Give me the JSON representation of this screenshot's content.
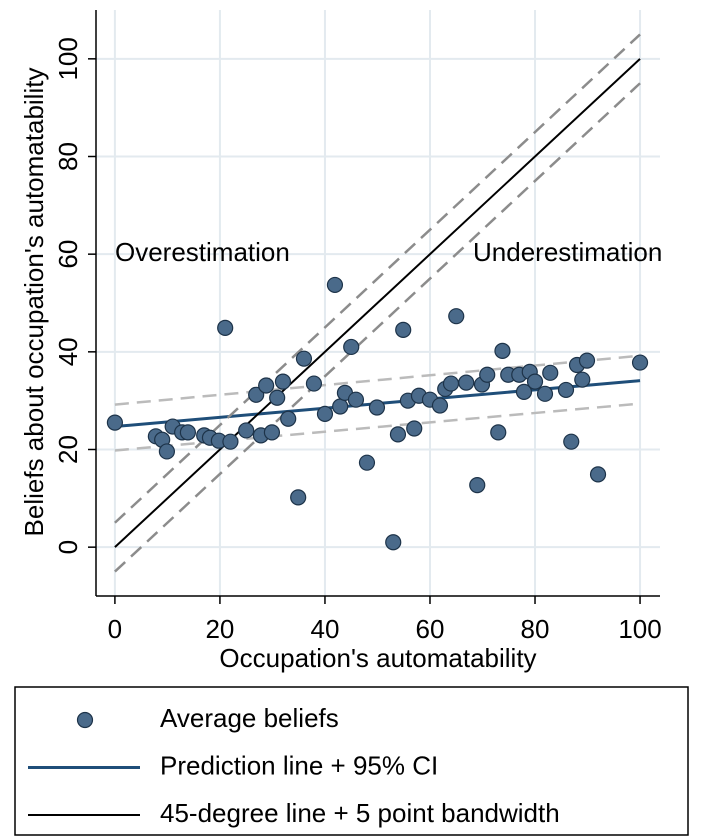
{
  "chart_data": {
    "type": "scatter",
    "x_label": "Occupation's automatability",
    "y_label": "Beliefs about occupation's automatability",
    "annotations": [
      "Overestimation",
      "Underestimation"
    ],
    "xlim": [
      -3.6,
      103.8
    ],
    "ylim": [
      -10,
      110
    ],
    "xticks": [
      0,
      20,
      40,
      60,
      80,
      100
    ],
    "yticks": [
      0,
      20,
      40,
      60,
      80,
      100
    ],
    "grid": true,
    "legend": "bottom",
    "series": [
      {
        "name": "Average beliefs",
        "type": "scatter",
        "color": "#4a6a8a",
        "x": [
          0,
          7.8,
          9,
          9.9,
          11,
          12.8,
          13.9,
          17,
          18.1,
          19.8,
          21,
          22,
          25,
          26.9,
          27.8,
          28.8,
          29.9,
          30.9,
          32,
          33,
          34.9,
          36,
          37.9,
          40,
          41.9,
          42.9,
          43.8,
          45,
          45.9,
          48,
          49.9,
          53,
          53.9,
          54.9,
          55.8,
          57,
          57.9,
          60,
          61.9,
          62.9,
          64,
          65,
          66.9,
          69,
          69.9,
          70.9,
          73,
          73.8,
          74.9,
          77,
          77.9,
          79,
          80,
          81.9,
          82.9,
          85.9,
          86.9,
          88,
          89,
          89.9,
          92,
          100
        ],
        "values": [
          25.5,
          22.7,
          22,
          19.6,
          24.7,
          23.5,
          23.5,
          22.9,
          22.4,
          21.8,
          44.9,
          21.6,
          23.9,
          31.2,
          22.9,
          33.1,
          23.5,
          30.6,
          33.9,
          26.3,
          10.2,
          38.6,
          33.5,
          27.3,
          53.7,
          28.8,
          31.6,
          41,
          30.2,
          17.3,
          28.6,
          1,
          23.1,
          44.5,
          30,
          24.3,
          31,
          30.2,
          29,
          32.4,
          33.5,
          47.3,
          33.7,
          12.7,
          33.3,
          35.3,
          23.5,
          40.2,
          35.3,
          35.3,
          31.8,
          35.9,
          33.9,
          31.4,
          35.7,
          32.2,
          21.6,
          37.3,
          34.3,
          38.2,
          14.9,
          37.8
        ]
      },
      {
        "name": "Prediction line + 95% CI",
        "type": "line",
        "color": "#1f4e79",
        "band_color": "#bbbbbb",
        "x": [
          0,
          100
        ],
        "values": [
          24.7,
          34.1
        ],
        "lower": [
          19.8,
          29.4
        ],
        "upper": [
          29.2,
          39.2
        ]
      },
      {
        "name": "45-degree line + 5 point bandwidth",
        "type": "line",
        "color": "#000000",
        "band_color": "#8c8c8c",
        "x": [
          0,
          100
        ],
        "values": [
          0,
          100
        ],
        "lower": [
          -5,
          95
        ],
        "upper": [
          5,
          105
        ]
      }
    ]
  }
}
